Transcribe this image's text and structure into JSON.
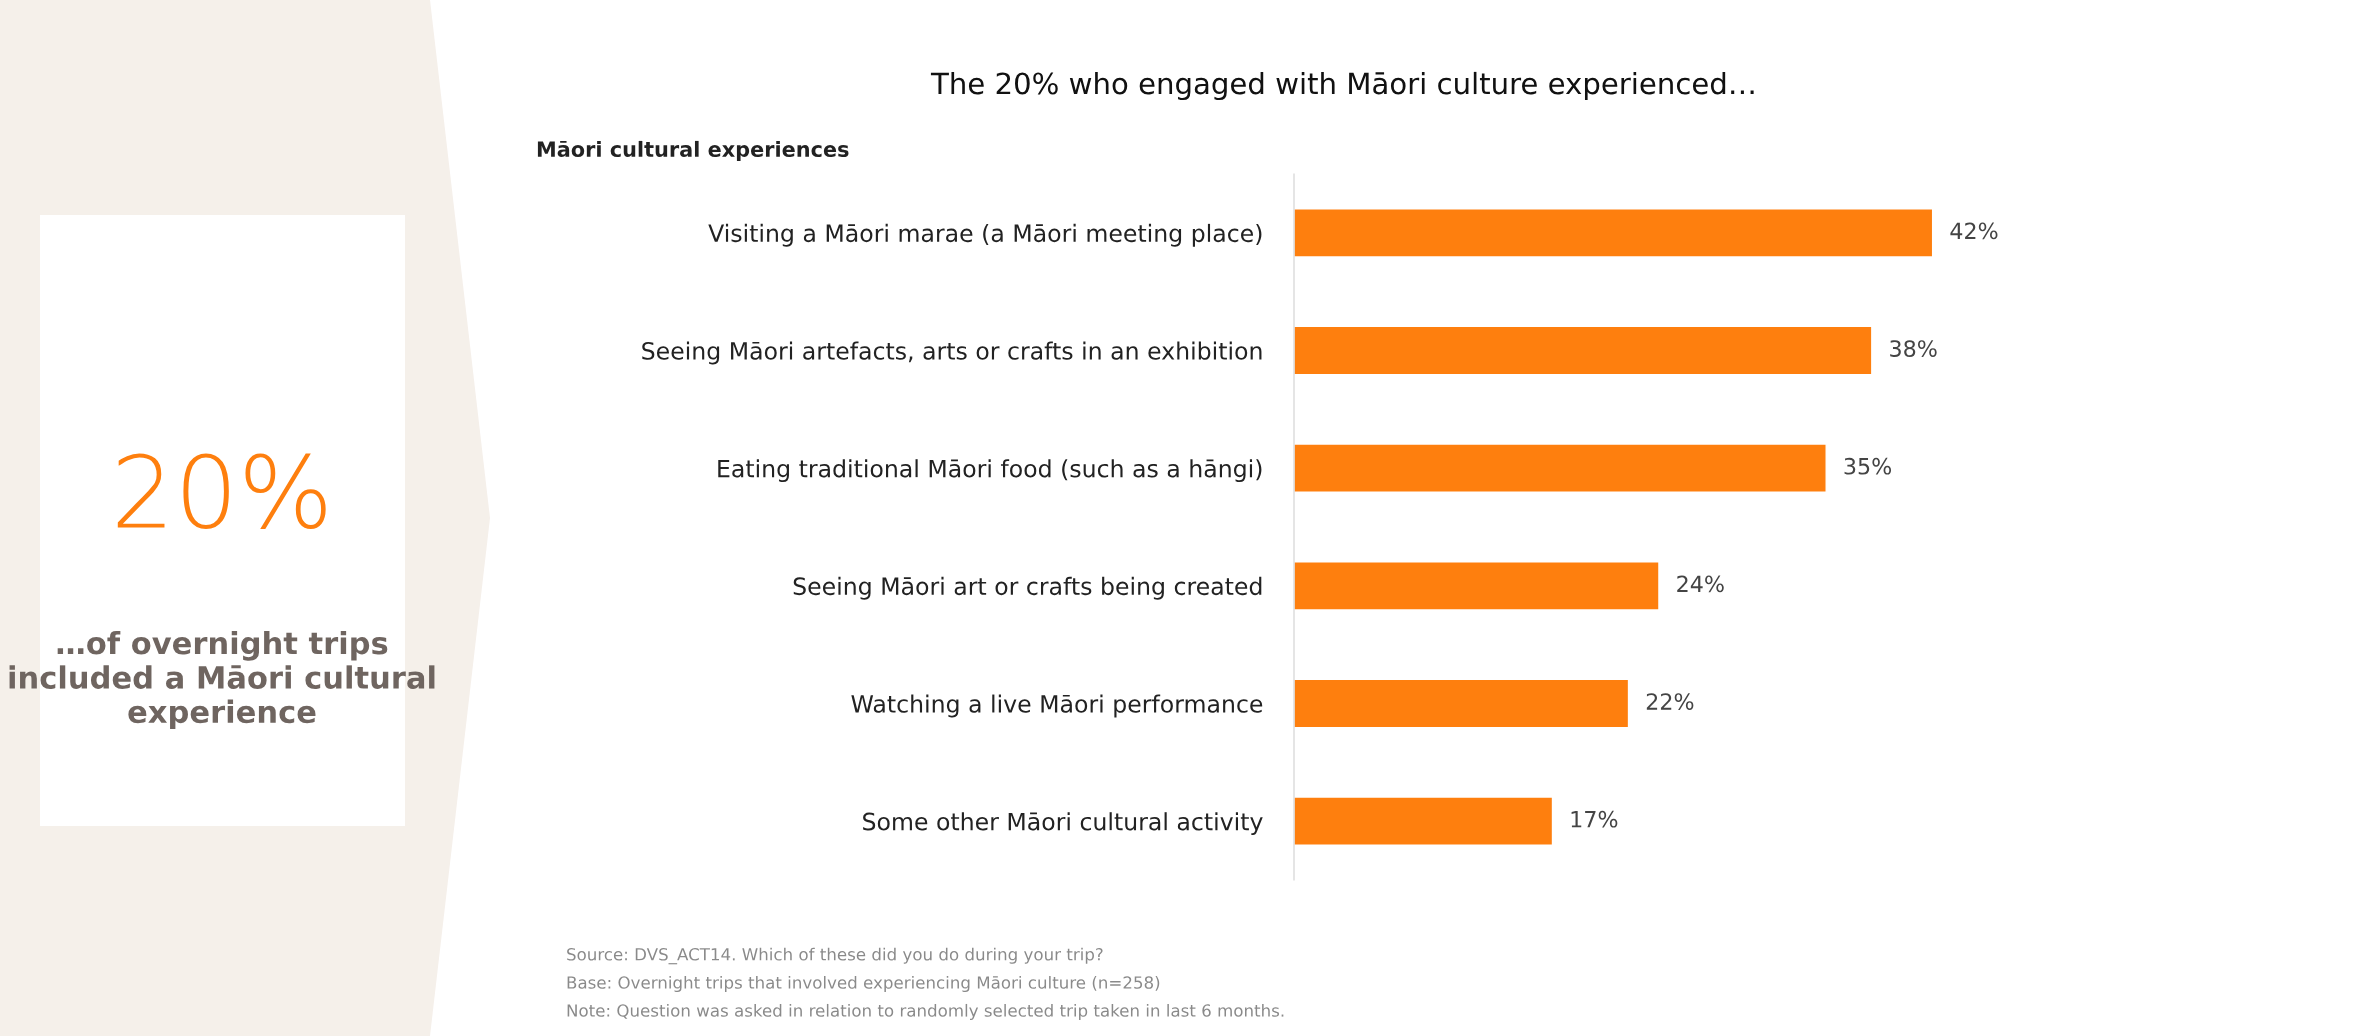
{
  "chart_data": [
    {
      "type": "other",
      "title": "20%",
      "color": "#fe7f0e",
      "annotations": [
        "…of overnight trips included a Māori cultural experience"
      ]
    },
    {
      "type": "bar",
      "orientation": "horizontal",
      "title": "The 20% who engaged with Māori culture experienced…",
      "subtitle": "Māori cultural experiences",
      "categories": [
        "Visiting a Māori marae (a Māori meeting place)",
        "Seeing Māori artefacts, arts or crafts in an exhibition",
        "Eating traditional Māori food (such as a hāngi)",
        "Seeing Māori art or crafts being created",
        "Watching a live Māori performance",
        "Some other Māori cultural activity"
      ],
      "values": [
        42,
        38,
        35,
        24,
        22,
        17
      ],
      "value_labels": [
        "42%",
        "38%",
        "35%",
        "24%",
        "22%",
        "17%"
      ],
      "color": "#fe7f0e",
      "annotations": [
        "Source: DVS_ACT14. Which of these did you do during your trip?",
        "Base: Overnight trips that involved experiencing Māori culture (n=258)",
        "Note: Question was asked in relation to randomly selected trip taken in last 6 months."
      ]
    }
  ]
}
